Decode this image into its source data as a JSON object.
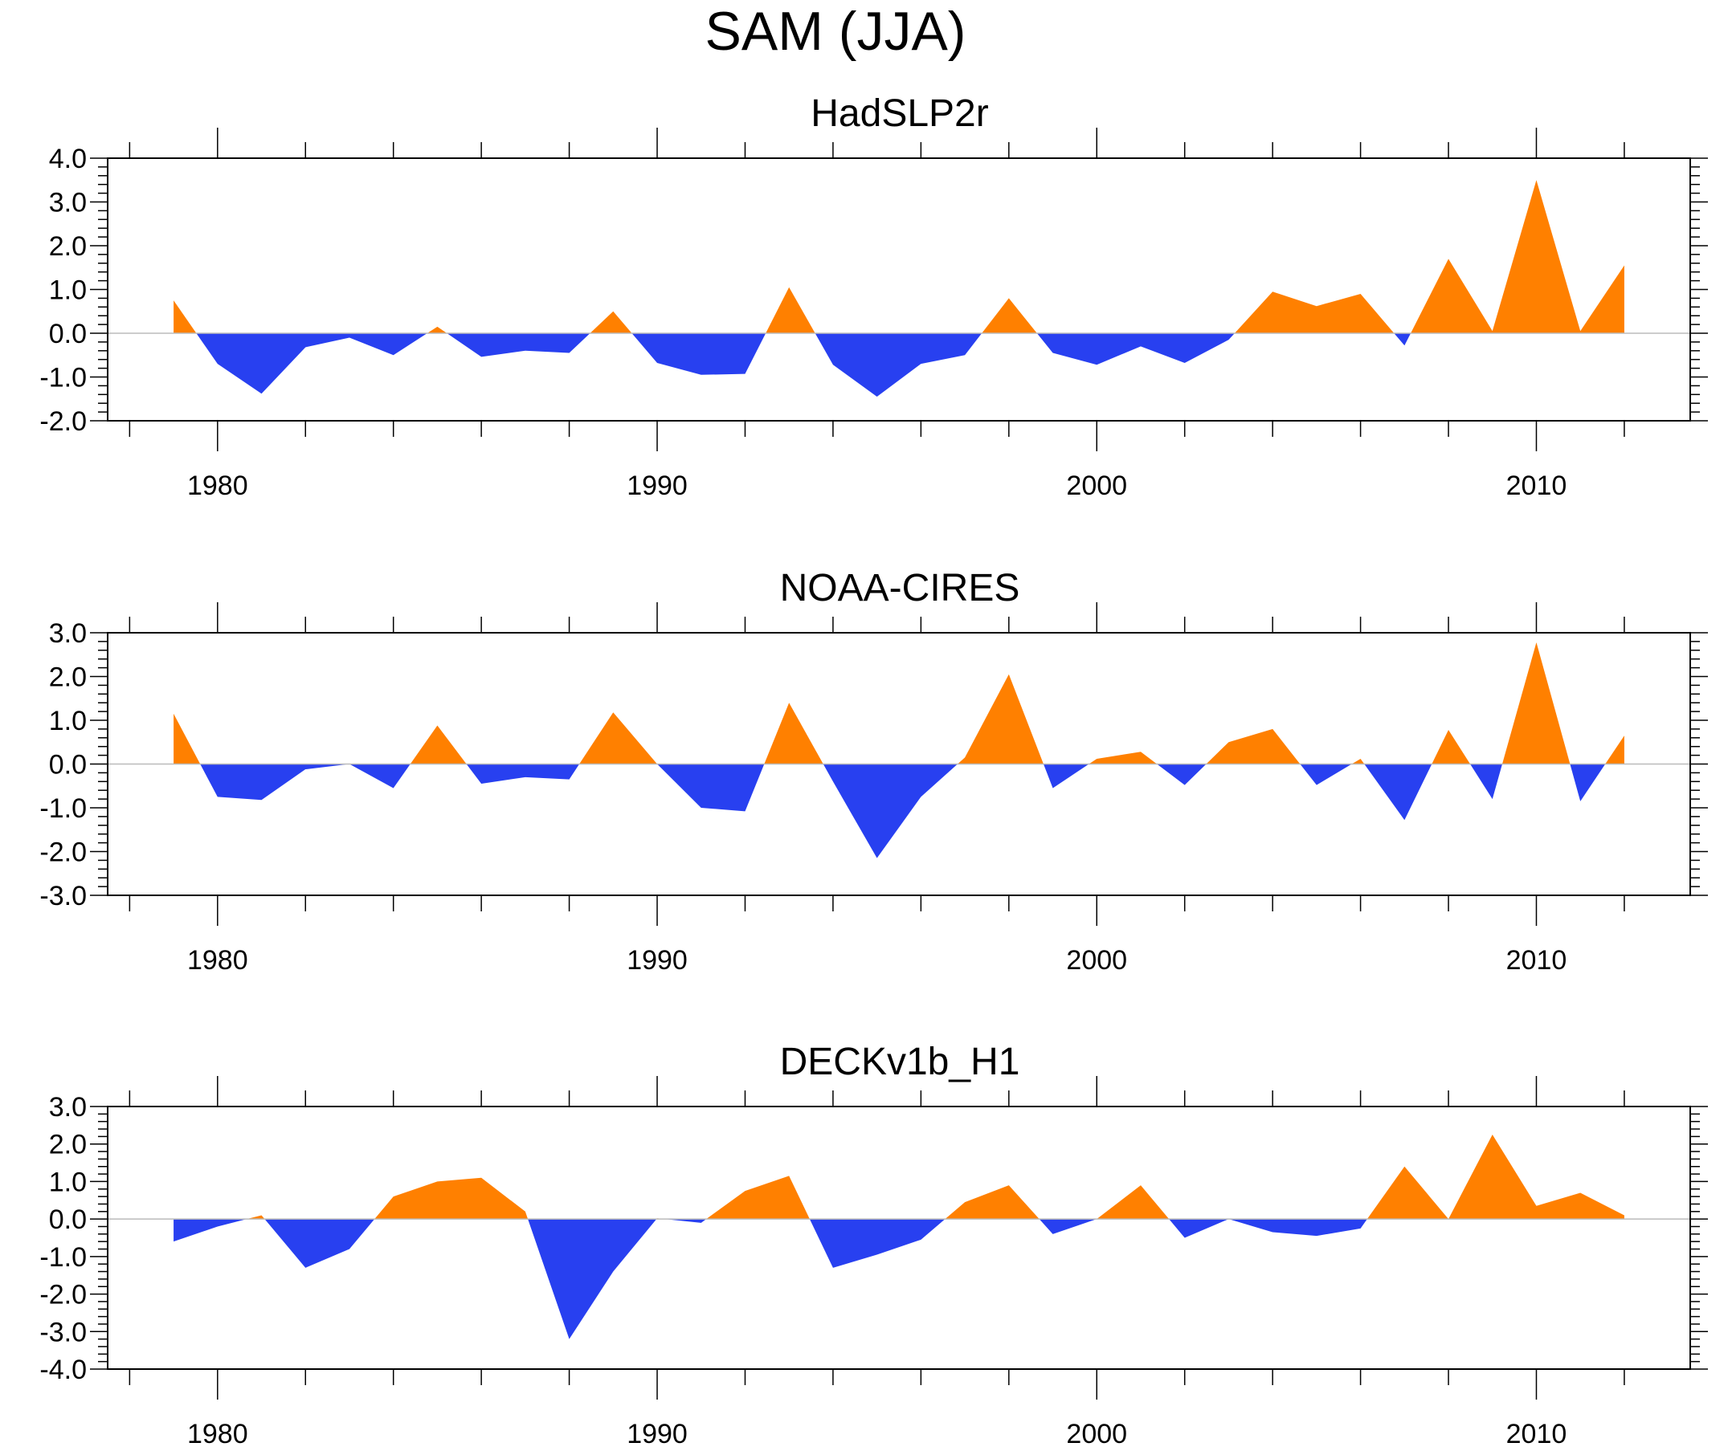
{
  "figure_title": "SAM (JJA)",
  "colors": {
    "positive": "#FF8000",
    "negative": "#2840F0",
    "axis": "#000000",
    "zero_line": "#bbbbbb"
  },
  "chart_data": [
    {
      "type": "area",
      "title": "HadSLP2r",
      "x": [
        1979,
        1980,
        1981,
        1982,
        1983,
        1984,
        1985,
        1986,
        1987,
        1988,
        1989,
        1990,
        1991,
        1992,
        1993,
        1994,
        1995,
        1996,
        1997,
        1998,
        1999,
        2000,
        2001,
        2002,
        2003,
        2004,
        2005,
        2006,
        2007,
        2008,
        2009,
        2010,
        2011,
        2012
      ],
      "values": [
        0.75,
        -0.7,
        -1.38,
        -0.32,
        -0.1,
        -0.5,
        0.15,
        -0.54,
        -0.4,
        -0.45,
        0.5,
        -0.68,
        -0.95,
        -0.93,
        1.05,
        -0.72,
        -1.45,
        -0.7,
        -0.5,
        0.8,
        -0.45,
        -0.72,
        -0.3,
        -0.68,
        -0.15,
        0.95,
        0.62,
        0.9,
        -0.28,
        1.7,
        0.05,
        3.5,
        0.05,
        1.55
      ],
      "ylim": [
        -2.0,
        4.0
      ],
      "yticks": [
        -2.0,
        -1.0,
        0.0,
        1.0,
        2.0,
        3.0,
        4.0
      ],
      "ytick_labels": [
        "-2.0",
        "-1.0",
        "0.0",
        "1.0",
        "2.0",
        "3.0",
        "4.0"
      ],
      "xlim": [
        1977.5,
        2013.5
      ],
      "xticks": [
        1980,
        1990,
        2000,
        2010
      ],
      "xtick_labels": [
        "1980",
        "1990",
        "2000",
        "2010"
      ],
      "xlabel": "",
      "ylabel": ""
    },
    {
      "type": "area",
      "title": "NOAA-CIRES",
      "x": [
        1979,
        1980,
        1981,
        1982,
        1983,
        1984,
        1985,
        1986,
        1987,
        1988,
        1989,
        1990,
        1991,
        1992,
        1993,
        1994,
        1995,
        1996,
        1997,
        1998,
        1999,
        2000,
        2001,
        2002,
        2003,
        2004,
        2005,
        2006,
        2007,
        2008,
        2009,
        2010,
        2011,
        2012
      ],
      "values": [
        1.15,
        -0.75,
        -0.82,
        -0.12,
        0.0,
        -0.55,
        0.88,
        -0.45,
        -0.3,
        -0.35,
        1.18,
        0.0,
        -1.0,
        -1.08,
        1.4,
        -0.4,
        -2.15,
        -0.75,
        0.15,
        2.05,
        -0.55,
        0.12,
        0.28,
        -0.48,
        0.5,
        0.8,
        -0.48,
        0.12,
        -1.28,
        0.78,
        -0.8,
        2.78,
        -0.85,
        0.65
      ],
      "ylim": [
        -3.0,
        3.0
      ],
      "yticks": [
        -3.0,
        -2.0,
        -1.0,
        0.0,
        1.0,
        2.0,
        3.0
      ],
      "ytick_labels": [
        "-3.0",
        "-2.0",
        "-1.0",
        "0.0",
        "1.0",
        "2.0",
        "3.0"
      ],
      "xlim": [
        1977.5,
        2013.5
      ],
      "xticks": [
        1980,
        1990,
        2000,
        2010
      ],
      "xtick_labels": [
        "1980",
        "1990",
        "2000",
        "2010"
      ],
      "xlabel": "",
      "ylabel": ""
    },
    {
      "type": "area",
      "title": "DECKv1b_H1",
      "x": [
        1979,
        1980,
        1981,
        1982,
        1983,
        1984,
        1985,
        1986,
        1987,
        1988,
        1989,
        1990,
        1991,
        1992,
        1993,
        1994,
        1995,
        1996,
        1997,
        1998,
        1999,
        2000,
        2001,
        2002,
        2003,
        2004,
        2005,
        2006,
        2007,
        2008,
        2009,
        2010,
        2011,
        2012
      ],
      "values": [
        -0.6,
        -0.2,
        0.1,
        -1.3,
        -0.8,
        0.6,
        1.0,
        1.1,
        0.2,
        -3.2,
        -1.4,
        0.02,
        -0.1,
        0.75,
        1.15,
        -1.3,
        -0.95,
        -0.55,
        0.45,
        0.9,
        -0.4,
        0.0,
        0.9,
        -0.5,
        0.0,
        -0.35,
        -0.45,
        -0.25,
        1.4,
        0.0,
        2.25,
        0.35,
        0.7,
        0.1
      ],
      "ylim": [
        -4.0,
        3.0
      ],
      "yticks": [
        -4.0,
        -3.0,
        -2.0,
        -1.0,
        0.0,
        1.0,
        2.0,
        3.0
      ],
      "ytick_labels": [
        "-4.0",
        "-3.0",
        "-2.0",
        "-1.0",
        "0.0",
        "1.0",
        "2.0",
        "3.0"
      ],
      "xlim": [
        1977.5,
        2013.5
      ],
      "xticks": [
        1980,
        1990,
        2000,
        2010
      ],
      "xtick_labels": [
        "1980",
        "1990",
        "2000",
        "2010"
      ],
      "xlabel": "",
      "ylabel": ""
    }
  ]
}
